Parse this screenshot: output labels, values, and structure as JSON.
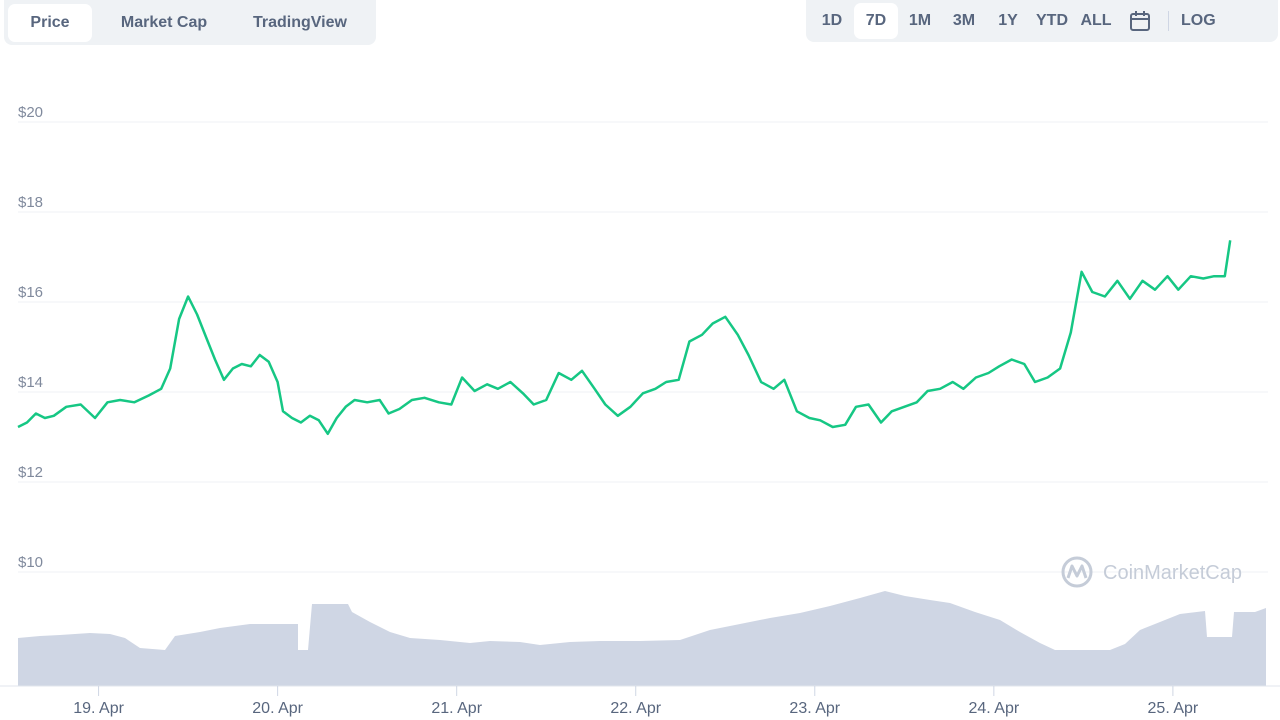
{
  "tabs": [
    {
      "label": "Price",
      "active": true
    },
    {
      "label": "Market Cap",
      "active": false
    },
    {
      "label": "TradingView",
      "active": false
    }
  ],
  "ranges": [
    {
      "label": "1D",
      "active": false
    },
    {
      "label": "7D",
      "active": true
    },
    {
      "label": "1M",
      "active": false
    },
    {
      "label": "3M",
      "active": false
    },
    {
      "label": "1Y",
      "active": false
    },
    {
      "label": "YTD",
      "active": false
    },
    {
      "label": "ALL",
      "active": false
    }
  ],
  "calendar_icon": "calendar-icon",
  "log_label": "LOG",
  "watermark": "CoinMarketCap",
  "colors": {
    "line": "#16c784",
    "volume": "#cfd6e4",
    "grid": "#eff2f5"
  },
  "chart_data": {
    "type": "line",
    "title": "",
    "xlabel": "",
    "ylabel": "",
    "ylim": [
      10,
      21
    ],
    "yticks": [
      "$10",
      "$12",
      "$14",
      "$16",
      "$18",
      "$20"
    ],
    "ytick_values": [
      10,
      12,
      14,
      16,
      18,
      20
    ],
    "xticks": [
      "19. Apr",
      "20. Apr",
      "21. Apr",
      "22. Apr",
      "23. Apr",
      "24. Apr",
      "25. Apr"
    ],
    "xlim": [
      18.55,
      25.52
    ],
    "grid": true,
    "series": [
      {
        "values": [
          [
            18.55,
            13.0
          ],
          [
            18.6,
            13.1
          ],
          [
            18.65,
            13.3
          ],
          [
            18.7,
            13.2
          ],
          [
            18.75,
            13.25
          ],
          [
            18.82,
            13.45
          ],
          [
            18.9,
            13.5
          ],
          [
            18.98,
            13.2
          ],
          [
            19.05,
            13.55
          ],
          [
            19.12,
            13.6
          ],
          [
            19.2,
            13.55
          ],
          [
            19.28,
            13.7
          ],
          [
            19.35,
            13.85
          ],
          [
            19.4,
            14.3
          ],
          [
            19.45,
            15.4
          ],
          [
            19.5,
            15.9
          ],
          [
            19.55,
            15.5
          ],
          [
            19.6,
            15.0
          ],
          [
            19.65,
            14.5
          ],
          [
            19.7,
            14.05
          ],
          [
            19.75,
            14.3
          ],
          [
            19.8,
            14.4
          ],
          [
            19.85,
            14.35
          ],
          [
            19.9,
            14.6
          ],
          [
            19.95,
            14.45
          ],
          [
            20.0,
            14.0
          ],
          [
            20.03,
            13.35
          ],
          [
            20.08,
            13.2
          ],
          [
            20.13,
            13.1
          ],
          [
            20.18,
            13.25
          ],
          [
            20.23,
            13.15
          ],
          [
            20.28,
            12.85
          ],
          [
            20.33,
            13.2
          ],
          [
            20.38,
            13.45
          ],
          [
            20.43,
            13.6
          ],
          [
            20.5,
            13.55
          ],
          [
            20.57,
            13.6
          ],
          [
            20.62,
            13.3
          ],
          [
            20.68,
            13.4
          ],
          [
            20.75,
            13.6
          ],
          [
            20.82,
            13.65
          ],
          [
            20.9,
            13.55
          ],
          [
            20.97,
            13.5
          ],
          [
            21.03,
            14.1
          ],
          [
            21.1,
            13.8
          ],
          [
            21.17,
            13.95
          ],
          [
            21.23,
            13.85
          ],
          [
            21.3,
            14.0
          ],
          [
            21.37,
            13.75
          ],
          [
            21.43,
            13.5
          ],
          [
            21.5,
            13.6
          ],
          [
            21.57,
            14.2
          ],
          [
            21.64,
            14.05
          ],
          [
            21.7,
            14.25
          ],
          [
            21.77,
            13.85
          ],
          [
            21.83,
            13.5
          ],
          [
            21.9,
            13.25
          ],
          [
            21.97,
            13.45
          ],
          [
            22.04,
            13.75
          ],
          [
            22.11,
            13.85
          ],
          [
            22.17,
            14.0
          ],
          [
            22.24,
            14.05
          ],
          [
            22.3,
            14.9
          ],
          [
            22.37,
            15.05
          ],
          [
            22.43,
            15.3
          ],
          [
            22.5,
            15.45
          ],
          [
            22.57,
            15.05
          ],
          [
            22.63,
            14.6
          ],
          [
            22.7,
            14.0
          ],
          [
            22.77,
            13.85
          ],
          [
            22.83,
            14.05
          ],
          [
            22.9,
            13.35
          ],
          [
            22.97,
            13.2
          ],
          [
            23.03,
            13.15
          ],
          [
            23.1,
            13.0
          ],
          [
            23.17,
            13.05
          ],
          [
            23.23,
            13.45
          ],
          [
            23.3,
            13.5
          ],
          [
            23.37,
            13.1
          ],
          [
            23.43,
            13.35
          ],
          [
            23.5,
            13.45
          ],
          [
            23.57,
            13.55
          ],
          [
            23.63,
            13.8
          ],
          [
            23.7,
            13.85
          ],
          [
            23.77,
            14.0
          ],
          [
            23.83,
            13.85
          ],
          [
            23.9,
            14.1
          ],
          [
            23.97,
            14.2
          ],
          [
            24.03,
            14.35
          ],
          [
            24.1,
            14.5
          ],
          [
            24.17,
            14.4
          ],
          [
            24.23,
            14.0
          ],
          [
            24.3,
            14.1
          ],
          [
            24.37,
            14.3
          ],
          [
            24.43,
            15.1
          ],
          [
            24.49,
            16.45
          ],
          [
            24.55,
            16.0
          ],
          [
            24.62,
            15.9
          ],
          [
            24.69,
            16.25
          ],
          [
            24.76,
            15.85
          ],
          [
            24.83,
            16.25
          ],
          [
            24.9,
            16.05
          ],
          [
            24.97,
            16.35
          ],
          [
            25.03,
            16.05
          ],
          [
            25.1,
            16.35
          ],
          [
            25.17,
            16.3
          ],
          [
            25.23,
            16.35
          ],
          [
            25.29,
            16.35
          ],
          [
            25.32,
            17.15
          ]
        ]
      }
    ]
  }
}
